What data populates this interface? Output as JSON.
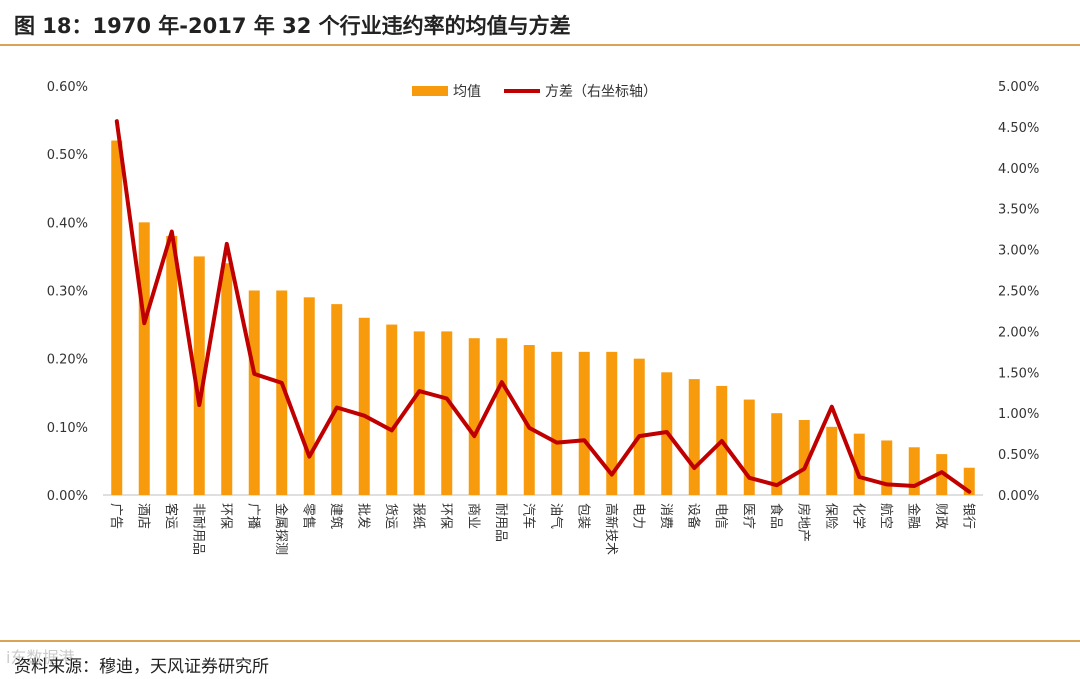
{
  "title": "图 18：1970 年-2017 年 32 个行业违约率的均值与方差",
  "source": "资料来源：穆迪，天风证券研究所",
  "watermark": "i东数据港",
  "colors": {
    "bar": "#f79a0c",
    "line": "#c00000",
    "rule": "#d9a456"
  },
  "chart_data": {
    "type": "bar",
    "legend_position": "top",
    "grid": false,
    "categories": [
      "广告",
      "酒店",
      "客运",
      "非耐用品",
      "环保",
      "广播",
      "金属探测",
      "零售",
      "建筑",
      "批发",
      "货运",
      "报纸",
      "环保",
      "商业",
      "耐用品",
      "汽车",
      "油气",
      "包装",
      "高新技术",
      "电力",
      "消费",
      "设备",
      "电信",
      "医疗",
      "食品",
      "房地产",
      "保险",
      "化学",
      "航空",
      "金融",
      "财政",
      "银行"
    ],
    "series": [
      {
        "name": "均值",
        "type": "bar",
        "axis": "left",
        "values": [
          0.52,
          0.4,
          0.38,
          0.35,
          0.34,
          0.3,
          0.3,
          0.29,
          0.28,
          0.26,
          0.25,
          0.24,
          0.24,
          0.23,
          0.23,
          0.22,
          0.21,
          0.21,
          0.21,
          0.2,
          0.18,
          0.17,
          0.16,
          0.14,
          0.12,
          0.11,
          0.1,
          0.09,
          0.08,
          0.07,
          0.06,
          0.04
        ]
      },
      {
        "name": "方差（右坐标轴）",
        "type": "line",
        "axis": "right",
        "values": [
          4.57,
          2.1,
          3.22,
          1.1,
          3.07,
          1.48,
          1.37,
          0.47,
          1.07,
          0.97,
          0.79,
          1.27,
          1.18,
          0.72,
          1.38,
          0.82,
          0.64,
          0.67,
          0.25,
          0.72,
          0.77,
          0.33,
          0.66,
          0.21,
          0.12,
          0.32,
          1.08,
          0.22,
          0.13,
          0.11,
          0.28,
          0.04
        ]
      }
    ],
    "y_left": {
      "ylim": [
        0,
        0.6
      ],
      "ticks": [
        "0.00%",
        "0.10%",
        "0.20%",
        "0.30%",
        "0.40%",
        "0.50%",
        "0.60%"
      ]
    },
    "y_right": {
      "ylim": [
        0,
        5
      ],
      "ticks": [
        "0.00%",
        "0.50%",
        "1.00%",
        "1.50%",
        "2.00%",
        "2.50%",
        "3.00%",
        "3.50%",
        "4.00%",
        "4.50%",
        "5.00%"
      ]
    }
  }
}
